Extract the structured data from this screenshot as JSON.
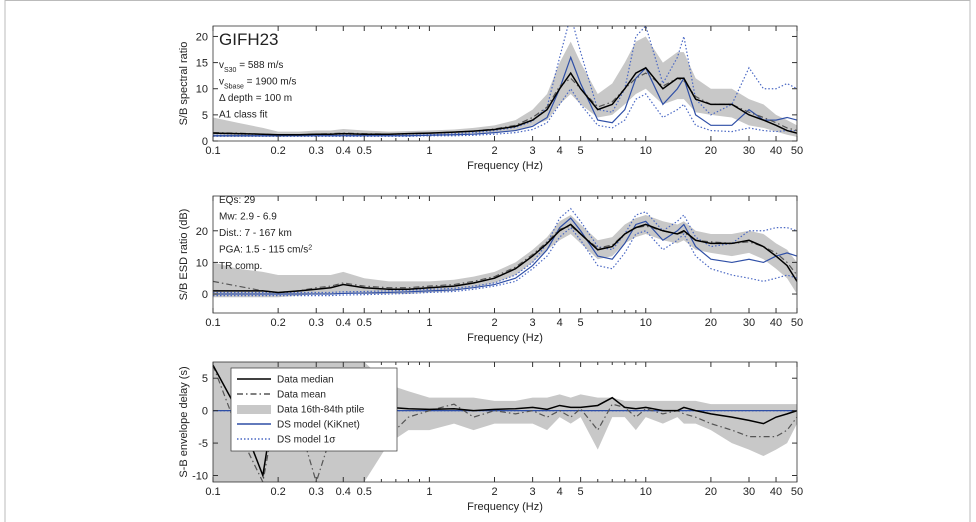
{
  "chart_data": [
    {
      "type": "line",
      "log_x": true,
      "label": "GIFH23",
      "xlabel": "Frequency (Hz)",
      "ylabel": "S/B spectral ratio",
      "xlim": [
        0.1,
        50
      ],
      "xticks": [
        0.1,
        0.2,
        0.3,
        0.4,
        0.5,
        1,
        2,
        3,
        4,
        5,
        10,
        20,
        30,
        40,
        50
      ],
      "xminor": [
        0.6,
        0.7,
        0.8,
        0.9,
        6,
        7,
        8,
        9
      ],
      "ylim": [
        0,
        22
      ],
      "yticks": [
        0,
        5,
        10,
        15,
        20
      ],
      "annotations": [
        {
          "parts": [
            {
              "text": "v"
            },
            {
              "text": "S30",
              "shift": "sub"
            },
            {
              "text": " = 588 m/s"
            }
          ]
        },
        {
          "parts": [
            {
              "text": "v"
            },
            {
              "text": "Sbase",
              "shift": "sub"
            },
            {
              "text": " = 1900 m/s"
            }
          ]
        },
        {
          "parts": [
            {
              "text": "Δ depth = 100 m"
            }
          ]
        },
        {
          "parts": [
            {
              "text": "A1 class fit"
            }
          ]
        }
      ],
      "x": [
        0.1,
        0.13,
        0.17,
        0.2,
        0.25,
        0.3,
        0.35,
        0.4,
        0.5,
        0.65,
        0.8,
        1,
        1.3,
        1.6,
        2,
        2.5,
        3,
        3.5,
        4,
        4.5,
        5,
        6,
        7,
        8,
        9,
        10,
        12,
        14,
        15,
        17,
        20,
        25,
        30,
        35,
        40,
        45,
        50
      ],
      "series": [
        {
          "style": "solid",
          "color": "#000000",
          "values": [
            1.5,
            1.4,
            1.3,
            1.2,
            1.2,
            1.3,
            1.3,
            1.4,
            1.3,
            1.3,
            1.4,
            1.5,
            1.7,
            1.9,
            2.2,
            2.8,
            4,
            6,
            10,
            13,
            10,
            6,
            7,
            10,
            13,
            14,
            10,
            12,
            12,
            8,
            7,
            7,
            5,
            4,
            3,
            2,
            1.5
          ]
        },
        {
          "style": "dashdot",
          "color": "#555555",
          "values": [
            1.6,
            1.5,
            1.3,
            1.2,
            1.2,
            1.3,
            1.4,
            1.5,
            1.4,
            1.3,
            1.4,
            1.5,
            1.7,
            1.9,
            2.3,
            3,
            4.5,
            6.5,
            10.5,
            12,
            10,
            6.5,
            7.5,
            10,
            12,
            13,
            10.5,
            12,
            11.5,
            8.5,
            7,
            7,
            5.5,
            4.5,
            3.5,
            2.5,
            2
          ]
        },
        {
          "style": "band",
          "color": "#c8c8c8",
          "values": [
            0.8,
            0.8,
            0.8,
            0.8,
            0.9,
            0.9,
            0.9,
            1,
            1,
            1,
            1,
            1.1,
            1.2,
            1.4,
            1.6,
            2,
            3,
            4,
            7,
            9,
            7,
            4.5,
            5,
            7,
            9,
            10,
            7,
            8,
            8,
            5.5,
            5,
            4.5,
            3,
            2.5,
            1.8,
            1.2,
            0.8
          ],
          "values_high": [
            4.5,
            3.5,
            2.5,
            1.8,
            1.8,
            2,
            2,
            2.3,
            2,
            1.8,
            1.9,
            2,
            2.2,
            2.5,
            3,
            4,
            6,
            9,
            15,
            19,
            15,
            9,
            11,
            15,
            19,
            20,
            15,
            17,
            17,
            12,
            10,
            10,
            8,
            7,
            5,
            4,
            3
          ]
        },
        {
          "style": "solid",
          "color": "#2f4fa6",
          "values": [
            1,
            1,
            1,
            1,
            1,
            1,
            1,
            1,
            1,
            1,
            1,
            1.1,
            1.2,
            1.3,
            1.6,
            2,
            2.8,
            4.5,
            10,
            16,
            11,
            4,
            3.5,
            6,
            12,
            14,
            7,
            10,
            12,
            5,
            3,
            3,
            6,
            4,
            4,
            4.5,
            4
          ]
        },
        {
          "style": "dotted",
          "color": "#4a68c4",
          "values": [
            0.9,
            0.9,
            0.9,
            0.9,
            0.9,
            0.9,
            0.9,
            0.9,
            0.9,
            0.9,
            0.9,
            1,
            1,
            1.1,
            1.3,
            1.6,
            2.2,
            3.5,
            7,
            10,
            7,
            3,
            2.5,
            4,
            8,
            9,
            4.5,
            6,
            7,
            3,
            2,
            1.8,
            2.5,
            2,
            1.8,
            2,
            2
          ],
          "values_high": [
            1.1,
            1.1,
            1.1,
            1.1,
            1.1,
            1.1,
            1.1,
            1.1,
            1.1,
            1.1,
            1.1,
            1.2,
            1.4,
            1.6,
            2,
            2.6,
            3.8,
            6.5,
            16,
            24,
            17,
            6,
            5.5,
            10,
            20,
            22,
            11,
            16,
            20,
            8,
            5,
            7,
            14,
            10,
            10,
            11,
            10
          ]
        }
      ]
    },
    {
      "type": "line",
      "log_x": true,
      "xlabel": "Frequency (Hz)",
      "ylabel": "S/B ESD ratio (dB)",
      "xlim": [
        0.1,
        50
      ],
      "xticks": [
        0.1,
        0.2,
        0.3,
        0.4,
        0.5,
        1,
        2,
        3,
        4,
        5,
        10,
        20,
        30,
        40,
        50
      ],
      "xminor": [
        0.6,
        0.7,
        0.8,
        0.9,
        6,
        7,
        8,
        9
      ],
      "ylim": [
        -6,
        31
      ],
      "yticks": [
        0,
        10,
        20
      ],
      "annotations": [
        {
          "parts": [
            {
              "text": "EQs: 29"
            }
          ]
        },
        {
          "parts": [
            {
              "text": "Mw: 2.9 - 6.9"
            }
          ]
        },
        {
          "parts": [
            {
              "text": "Dist.: 7 - 167 km"
            }
          ]
        },
        {
          "parts": [
            {
              "text": "PGA: 1.5 - 115 cm/s"
            },
            {
              "text": "2",
              "shift": "sup"
            }
          ]
        },
        {
          "parts": [
            {
              "text": "TR comp."
            }
          ]
        }
      ],
      "x": [
        0.1,
        0.13,
        0.17,
        0.2,
        0.25,
        0.3,
        0.35,
        0.4,
        0.5,
        0.65,
        0.8,
        1,
        1.3,
        1.6,
        2,
        2.5,
        3,
        3.5,
        4,
        4.5,
        5,
        6,
        7,
        8,
        9,
        10,
        12,
        14,
        15,
        17,
        20,
        25,
        30,
        35,
        40,
        45,
        50
      ],
      "series": [
        {
          "style": "solid",
          "color": "#000000",
          "values": [
            1,
            1,
            1,
            0.5,
            1,
            1.5,
            2,
            3,
            2,
            1.5,
            1.5,
            2,
            2.5,
            3.5,
            5,
            8,
            12,
            16,
            20,
            22,
            19,
            14,
            15,
            19,
            21,
            22,
            20,
            19,
            20,
            17,
            16,
            16,
            17,
            15,
            12,
            9,
            4
          ]
        },
        {
          "style": "dashdot",
          "color": "#555555",
          "values": [
            4,
            2.5,
            1,
            0.5,
            1,
            2,
            2.5,
            3.5,
            2.5,
            2,
            2,
            2.5,
            3,
            4,
            5.5,
            8.5,
            12.5,
            16.5,
            20.5,
            21.5,
            19,
            14.5,
            15.5,
            19,
            21,
            21.5,
            20,
            19,
            19.5,
            17,
            16.5,
            16,
            16.5,
            15,
            13,
            10,
            6
          ]
        },
        {
          "style": "band",
          "color": "#c8c8c8",
          "values": [
            -1,
            -1,
            -1,
            -1,
            -0.5,
            0,
            0,
            0.5,
            0,
            0,
            0,
            0.5,
            1,
            2,
            3.5,
            6,
            10,
            14,
            17,
            19,
            16,
            11,
            12,
            16,
            18,
            19,
            17,
            16,
            17,
            14,
            13,
            12,
            13,
            11,
            8,
            5,
            0
          ],
          "values_high": [
            10,
            8,
            7,
            6,
            6,
            6,
            6,
            7,
            5,
            4,
            4,
            4,
            4.5,
            5.5,
            7,
            10,
            14,
            18,
            23,
            25,
            22,
            17,
            18,
            22,
            24,
            25,
            23,
            22,
            23,
            20,
            19,
            19,
            20,
            19,
            16,
            14,
            10
          ]
        },
        {
          "style": "solid",
          "color": "#2f4fa6",
          "values": [
            0,
            0,
            0,
            0,
            0,
            0,
            0,
            0.2,
            0.3,
            0.5,
            0.7,
            1,
            1.3,
            2,
            3,
            5,
            9,
            14,
            21,
            24,
            20,
            12,
            11,
            16,
            22,
            23,
            17,
            20,
            22,
            15,
            11,
            10,
            11,
            10,
            12,
            13,
            12
          ]
        },
        {
          "style": "dotted",
          "color": "#4a68c4",
          "values": [
            -0.5,
            -0.5,
            -0.5,
            -0.5,
            -0.5,
            -0.5,
            -0.5,
            -0.3,
            -0.2,
            0,
            0.2,
            0.5,
            0.8,
            1.5,
            2.5,
            4,
            8,
            12,
            18,
            21,
            17,
            9,
            8,
            13,
            19,
            20,
            14,
            17,
            19,
            12,
            8,
            6,
            5,
            4,
            5,
            6,
            5
          ],
          "values_high": [
            0.5,
            0.5,
            0.5,
            0.5,
            0.5,
            0.5,
            0.5,
            0.7,
            0.8,
            1,
            1.2,
            1.5,
            1.8,
            2.5,
            3.5,
            6,
            10,
            16,
            24,
            27,
            23,
            15,
            14,
            19,
            25,
            26,
            20,
            23,
            25,
            18,
            15,
            16,
            20,
            20,
            21,
            21,
            20
          ]
        }
      ]
    },
    {
      "type": "line",
      "log_x": true,
      "xlabel": "Frequency (Hz)",
      "ylabel": "S-B envelope delay (s)",
      "xlim": [
        0.1,
        50
      ],
      "xticks": [
        0.1,
        0.2,
        0.3,
        0.4,
        0.5,
        1,
        2,
        3,
        4,
        5,
        10,
        20,
        30,
        40,
        50
      ],
      "xminor": [
        0.6,
        0.7,
        0.8,
        0.9,
        6,
        7,
        8,
        9
      ],
      "ylim": [
        -11,
        7.5
      ],
      "yticks": [
        -10,
        -5,
        0,
        5
      ],
      "legend": "upper left",
      "x": [
        0.1,
        0.13,
        0.17,
        0.2,
        0.25,
        0.3,
        0.35,
        0.4,
        0.5,
        0.65,
        0.8,
        1,
        1.3,
        1.6,
        2,
        2.5,
        3,
        3.5,
        4,
        4.5,
        5,
        6,
        7,
        8,
        9,
        10,
        12,
        14,
        15,
        17,
        20,
        25,
        30,
        35,
        40,
        45,
        50
      ],
      "series": [
        {
          "name": "Data median",
          "style": "solid",
          "color": "#000000",
          "values": [
            7,
            0,
            -10,
            5,
            0,
            -5,
            3,
            -2,
            1,
            0.5,
            0.3,
            0.2,
            0.3,
            0,
            0.2,
            0.3,
            0.5,
            0.2,
            0.8,
            0.5,
            0.5,
            0.8,
            2,
            0.5,
            0.3,
            0.5,
            0,
            0,
            0.5,
            0,
            -0.5,
            -1,
            -1.5,
            -2,
            -1,
            -0.5,
            0
          ]
        },
        {
          "name": "Data mean",
          "style": "dashdot",
          "color": "#555555",
          "values": [
            7,
            -3,
            -11,
            2,
            -2,
            -11,
            -4,
            -1,
            -2,
            -4,
            -1,
            0,
            1,
            -1,
            0,
            -0.5,
            0,
            -1,
            0,
            -1,
            0.3,
            -3,
            1,
            0.5,
            -1,
            0.3,
            -0.5,
            0,
            -0.5,
            -1,
            -2,
            -3,
            -4,
            -4,
            -4,
            -3,
            -1
          ]
        },
        {
          "name": "Data 16th-84th ptile",
          "style": "band",
          "color": "#c8c8c8",
          "values": [
            -11,
            -11,
            -11,
            -11,
            -11,
            -11,
            -11,
            -11,
            -11,
            -5,
            -3,
            -3,
            -2,
            -3,
            -2,
            -2,
            -2,
            -3,
            -1,
            -2,
            -1,
            -6,
            -1,
            -1,
            -3,
            -1,
            -2,
            -1,
            -2,
            -2,
            -3,
            -5,
            -6,
            -7,
            -6,
            -5,
            -2
          ],
          "values_high": [
            7.5,
            7.5,
            7.5,
            7.5,
            7.5,
            7.5,
            7.5,
            7.5,
            7.5,
            4,
            3,
            2,
            2,
            2,
            1.5,
            1.5,
            2,
            2,
            2.5,
            2,
            2.5,
            2,
            2,
            1.5,
            1.5,
            1.5,
            1.5,
            1.5,
            1.5,
            1.5,
            1,
            1,
            1,
            1,
            1,
            1,
            1
          ]
        },
        {
          "name": "DS model (KiKnet)",
          "style": "solid",
          "color": "#2f4fa6",
          "values": [
            0,
            0,
            0,
            0,
            0,
            0,
            0,
            0,
            0,
            0,
            0,
            0,
            0,
            0,
            0,
            0,
            0,
            0,
            0,
            0,
            0,
            0,
            0,
            0,
            0,
            0,
            0,
            0,
            0,
            0,
            0,
            0,
            0,
            0,
            0,
            0,
            0
          ]
        },
        {
          "name": "DS model 1σ",
          "style": "dotted",
          "color": "#4a68c4",
          "values": [
            0,
            0,
            0,
            0,
            0,
            0,
            0,
            0,
            0,
            0,
            0,
            0,
            0,
            0,
            0,
            0,
            0,
            0,
            0,
            0,
            0,
            0,
            0,
            0,
            0,
            0,
            0,
            0,
            0,
            0,
            0,
            0,
            0,
            0,
            0,
            0,
            0
          ],
          "values_high": [
            0,
            0,
            0,
            0,
            0,
            0,
            0,
            0,
            0,
            0,
            0,
            0,
            0,
            0,
            0,
            0,
            0,
            0,
            0,
            0,
            0,
            0,
            0,
            0,
            0,
            0,
            0,
            0,
            0,
            0,
            0,
            0,
            0,
            0,
            0,
            0,
            0
          ]
        }
      ]
    }
  ]
}
